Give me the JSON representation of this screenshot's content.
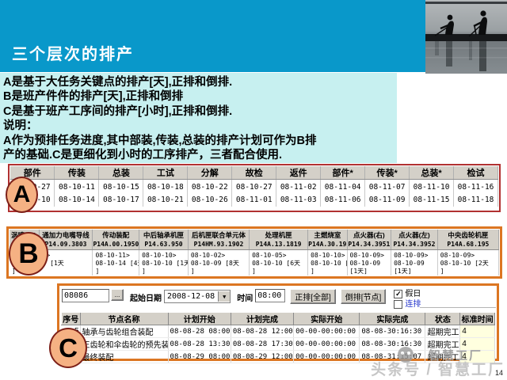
{
  "slide": {
    "title": "三个层次的排产",
    "page_number": "14"
  },
  "labels": {
    "a": "A",
    "b": "B",
    "c": "C"
  },
  "intro": {
    "lines": [
      "A是基于大任务关键点的排产[天],正排和倒排.",
      "B是班产件件的排产[天],正排和倒排",
      "C是基于班产工序间的排产[小时],正排和倒排.",
      "说明：",
      "A作为预排任务进度,其中部装,传装,总装的排产计划可作为B排",
      "产的基础.C是更细化到小时的工序排产，三者配合使用."
    ]
  },
  "table_a": {
    "headers": [
      "部件",
      "传装",
      "总装",
      "工试",
      "分解",
      "故检",
      "返件",
      "部件*",
      "传装*",
      "总装*",
      "检试"
    ],
    "rows": [
      [
        "08-09-27",
        "08-10-11",
        "08-10-15",
        "08-10-18",
        "08-10-22",
        "08-10-27",
        "08-11-02",
        "08-11-04",
        "08-11-07",
        "08-11-10",
        "08-11-16"
      ],
      [
        "08-10-10",
        "08-10-14",
        "08-10-17",
        "08-10-21",
        "08-10-26",
        "08-11-01",
        "08-11-03",
        "08-11-06",
        "08-11-09",
        "08-11-15",
        "08-11-18"
      ]
    ]
  },
  "table_b": {
    "columns": [
      {
        "name": "涡喷14A",
        "code": "FWP14A"
      },
      {
        "name": "通加力电嘴导线",
        "code": "P14.09.3803"
      },
      {
        "name": "传动装配",
        "code": "P14A.00.1950"
      },
      {
        "name": "中后轴承机匣",
        "code": "P14.63.950"
      },
      {
        "name": "后机匣联合单元体",
        "code": "P14HM.93.1902"
      },
      {
        "name": "处理机匣",
        "code": "P14A.13.1819"
      },
      {
        "name": "主燃烧室",
        "code": "P14A.30.1950"
      },
      {
        "name": "点火器(右)",
        "code": "P14.34.3951"
      },
      {
        "name": "点火器(左)",
        "code": "P14.34.3952"
      },
      {
        "name": "中央齿轮机匣",
        "code": "P14A.68.195"
      }
    ],
    "cells": [
      {
        "span": 2,
        "lines": [
          "E08-10-14>",
          "708-10-14 [1天",
          "]"
        ]
      },
      {
        "span": 1,
        "lines": [
          "08-10-11>",
          "08-10-14 [4天",
          "]"
        ]
      },
      {
        "span": 1,
        "lines": [
          "08-10-10>",
          "08-10-10 [1天",
          "]"
        ]
      },
      {
        "span": 1,
        "lines": [
          "08-10-02>",
          "08-10-09 [8天",
          "]"
        ]
      },
      {
        "span": 1,
        "lines": [
          "08-10-05>",
          "08-10-10 [6天",
          "]"
        ]
      },
      {
        "span": 1,
        "lines": [
          "08-10-10>",
          "08-10-10 [1天",
          "]"
        ]
      },
      {
        "span": 1,
        "lines": [
          "08-10-09>",
          "08-10-09",
          "[1天]"
        ]
      },
      {
        "span": 1,
        "lines": [
          "08-10-09>",
          "08-10-09",
          "[1天]"
        ]
      },
      {
        "span": 1,
        "lines": [
          "08-10-09>",
          "08-10-10 [2天",
          "]"
        ]
      }
    ]
  },
  "table_c": {
    "toolbar": {
      "order_no": "08086",
      "ellipsis": "...",
      "start_date_label": "起始日期",
      "start_date": "2008-12-08",
      "time_label": "时间",
      "time": "08:00",
      "forward_btn": "正排[全部]",
      "backward_btn": "倒排[节点]",
      "holiday_label": "假日",
      "holiday_checked": true,
      "continuous_label": "连排",
      "continuous_checked": false
    },
    "headers": [
      "序号",
      "节点名称",
      "计划开始",
      "计划完成",
      "实际开始",
      "实际完成",
      "状态",
      "标准时间"
    ],
    "rows": [
      {
        "seq": "5",
        "name": "轴承与齿轮组合装配",
        "plan_start": "08-08-28 08:00",
        "plan_end": "08-08-28 12:00",
        "actual_start": "00-00-00:00:00",
        "actual_end": "08-08-30:16:30",
        "status": "超期完工",
        "std_time": "4"
      },
      {
        "seq": "",
        "name": "正齿轮和伞齿轮的预先装配",
        "plan_start": "08-08-28 13:30",
        "plan_end": "08-08-28 17:30",
        "actual_start": "00-00-00:00:00",
        "actual_end": "08-08-30:16:30",
        "status": "超期完工",
        "std_time": "4"
      },
      {
        "seq": "15",
        "name": "最终装配",
        "plan_start": "08-08-29 08:00",
        "plan_end": "08-08-29 12:00",
        "actual_start": "00-00-00:00:00",
        "actual_end": "08-08-31:15:07",
        "status": "超期完工",
        "std_time": "4"
      }
    ]
  },
  "icons": {
    "dropdown_arrow": "▼",
    "checkbox_check": "✓"
  },
  "watermark": {
    "line1": "智慧工厂",
    "line2": "头条号 / 智慧工厂"
  },
  "colors": {
    "header_bar": "#0998ca",
    "intro_bg": "#c7f0f0",
    "frame_a": "#b13131",
    "frame_bc": "#dc7622",
    "badge_fill": "#f5b183",
    "badge_border": "#7d2018",
    "grid_header_bg": "#d4d0c8",
    "std_time_bg": "#ffffdf",
    "link_blue": "#2435cc"
  }
}
